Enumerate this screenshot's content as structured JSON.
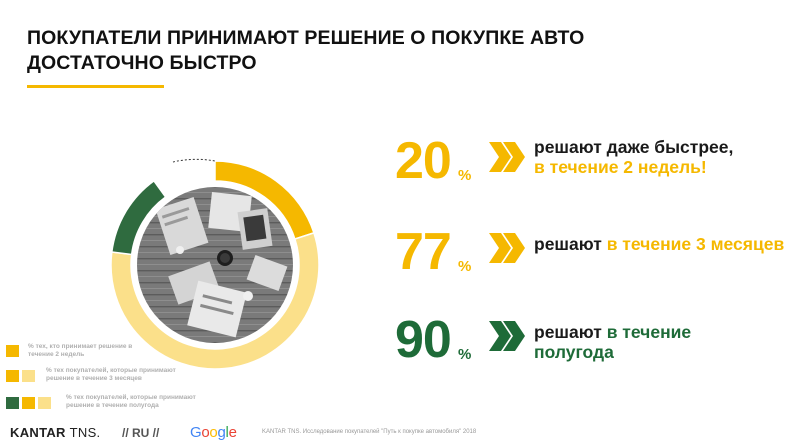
{
  "title": {
    "line1": "ПОКУПАТЕЛИ ПРИНИМАЮТ РЕШЕНИЕ О ПОКУПКЕ АВТО",
    "line2": "ДОСТАТОЧНО БЫСТРО"
  },
  "colors": {
    "accent_yellow": "#f5b800",
    "light_yellow": "#fbe08a",
    "green": "#2f6b3f",
    "dark_text": "#111111"
  },
  "chart_data": {
    "type": "pie",
    "segments": [
      {
        "name": "% тех, кто принимает решение в течение 2 недель",
        "value": 20,
        "color": "#f5b800"
      },
      {
        "name": "% тех покупателей, которые принимают решение в течение 3 месяцев",
        "value": 57,
        "color": "#fbe08a"
      },
      {
        "name": "% тех покупателей, которые принимают решение в течение полугода",
        "value": 13,
        "color": "#2f6b3f"
      }
    ],
    "cumulative": [
      20,
      77,
      90
    ]
  },
  "stats": [
    {
      "number": "20",
      "unit": "%",
      "text_dark": "решают даже быстрее,",
      "text_accent": "в течение 2 недель!"
    },
    {
      "number": "77",
      "unit": "%",
      "text_dark": "решают ",
      "text_accent": "в течение 3 месяцев"
    },
    {
      "number": "90",
      "unit": "%",
      "text_dark": "решают ",
      "text_accent": "в течение полугода"
    }
  ],
  "legend": [
    {
      "label": "% тех, кто принимает решение в течение 2 недель"
    },
    {
      "label": "% тех покупателей, которые принимают решение в течение 3 месяцев"
    },
    {
      "label": "% тех покупателей, которые принимают решение в течение полугода"
    }
  ],
  "footer": {
    "brand": "KANTAR",
    "brand_suffix": "TNS.",
    "separator_region": "// RU //",
    "partner": "Google",
    "source": "KANTAR TNS. Исследование покупателей \"Путь к покупке автомобиля\" 2018"
  }
}
